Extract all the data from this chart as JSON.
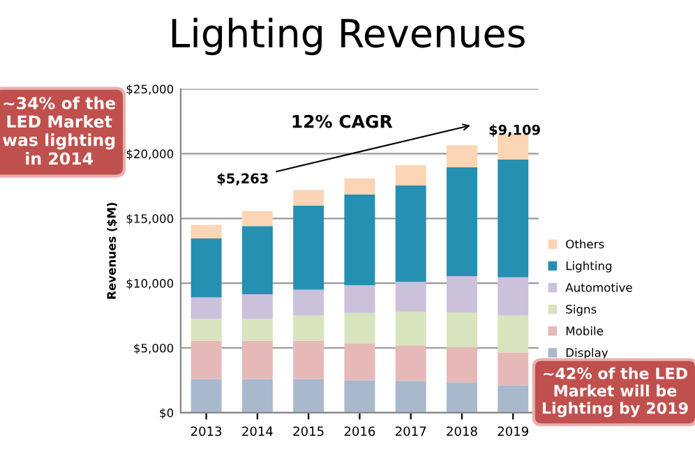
{
  "chart_data": {
    "type": "bar",
    "stacked": true,
    "title": "Lighting Revenues",
    "ylabel": "Revenues ($M)",
    "categories": [
      "2013",
      "2014",
      "2015",
      "2016",
      "2017",
      "2018",
      "2019"
    ],
    "series": [
      {
        "name": "Display",
        "color": "#a9b9cc",
        "values": [
          2600,
          2600,
          2600,
          2500,
          2450,
          2350,
          2100
        ]
      },
      {
        "name": "Mobile",
        "color": "#e6b9b8",
        "values": [
          2950,
          2950,
          2950,
          2850,
          2750,
          2700,
          2550
        ]
      },
      {
        "name": "Signs",
        "color": "#d7e4bd",
        "values": [
          1700,
          1700,
          1950,
          2350,
          2600,
          2700,
          2850
        ]
      },
      {
        "name": "Automotive",
        "color": "#ccc1da",
        "values": [
          1650,
          1900,
          2000,
          2150,
          2300,
          2800,
          2950
        ]
      },
      {
        "name": "Lighting",
        "color": "#2690b2",
        "values": [
          4550,
          5263,
          6500,
          7000,
          7450,
          8400,
          9109
        ]
      },
      {
        "name": "Others",
        "color": "#fcd5b5",
        "values": [
          1050,
          1150,
          1200,
          1250,
          1550,
          1700,
          1950
        ]
      }
    ],
    "ylim": [
      0,
      25000
    ],
    "yticks": [
      {
        "value": 0,
        "label": "$0"
      },
      {
        "value": 5000,
        "label": "$5,000"
      },
      {
        "value": 10000,
        "label": "$10,000"
      },
      {
        "value": 15000,
        "label": "$15,000"
      },
      {
        "value": 20000,
        "label": "$20,000"
      },
      {
        "value": 25000,
        "label": "$25,000"
      }
    ],
    "grid": "y",
    "legend": "right",
    "annotations": [
      "12% CAGR",
      "$5,263",
      "$9,109",
      "~34% of the LED Market was lighting in 2014",
      "~42% of the LED Market will be Lighting by 2019"
    ]
  }
}
